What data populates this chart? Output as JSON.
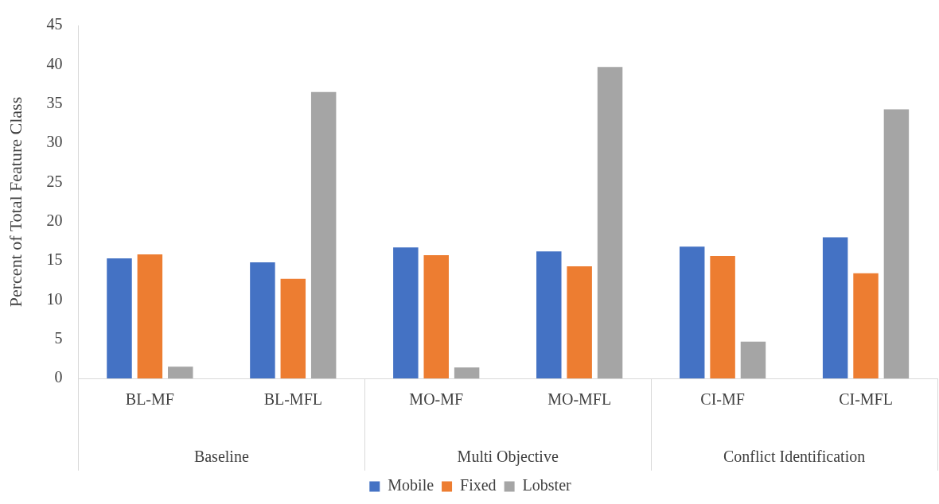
{
  "chart_data": {
    "type": "bar",
    "ylabel": "Percent of Total Feature Class",
    "categories": [
      "BL-MF",
      "BL-MFL",
      "MO-MF",
      "MO-MFL",
      "CI-MF",
      "CI-MFL"
    ],
    "annotations": [
      "Baseline",
      "Multi Objective",
      "Conflict Identification"
    ],
    "series": [
      {
        "name": "Mobile",
        "color": "#4472c4",
        "values": [
          15.3,
          14.8,
          16.7,
          16.2,
          16.8,
          18.0
        ]
      },
      {
        "name": "Fixed",
        "color": "#ed7d31",
        "values": [
          15.8,
          12.7,
          15.7,
          14.3,
          15.6,
          13.4
        ]
      },
      {
        "name": "Lobster",
        "color": "#a5a5a5",
        "values": [
          1.5,
          36.5,
          1.4,
          39.7,
          4.7,
          34.3
        ]
      }
    ],
    "ylim": [
      0,
      45
    ],
    "yticks": [
      0,
      5,
      10,
      15,
      20,
      25,
      30,
      35,
      40,
      45
    ],
    "grid": false,
    "legend": "bottom"
  }
}
